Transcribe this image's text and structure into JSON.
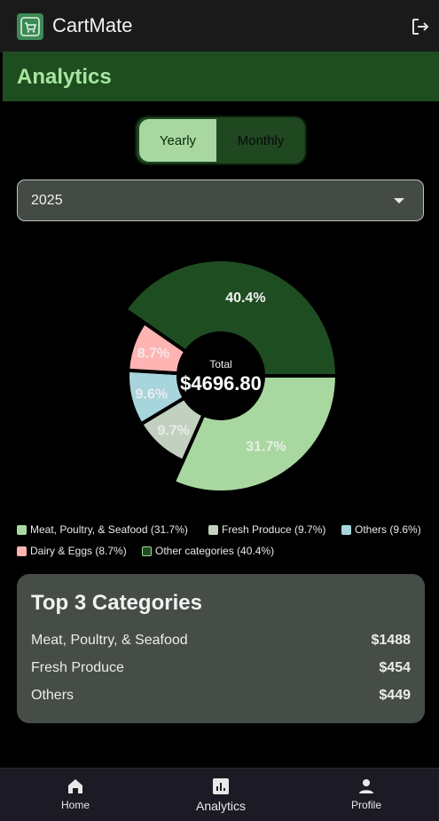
{
  "app": {
    "title": "CartMate"
  },
  "section": {
    "title": "Analytics"
  },
  "period_toggle": {
    "options": [
      "Yearly",
      "Monthly"
    ],
    "selected": "Yearly"
  },
  "year_select": {
    "value": "2025"
  },
  "chart_data": {
    "type": "pie",
    "donut": true,
    "center_label": "Total",
    "center_value": "$4696.80",
    "slices": [
      {
        "label": "Meat, Poultry, & Seafood",
        "value": 31.7,
        "display": "31.7%",
        "color": "#a8d8a0"
      },
      {
        "label": "Fresh Produce",
        "value": 9.7,
        "display": "9.7%",
        "color": "#c2d0c0"
      },
      {
        "label": "Others",
        "value": 9.6,
        "display": "9.6%",
        "color": "#a8d4dc"
      },
      {
        "label": "Dairy & Eggs",
        "value": 8.7,
        "display": "8.7%",
        "color": "#ffb3b3"
      },
      {
        "label": "Other categories",
        "value": 40.4,
        "display": "40.4%",
        "color": "#1f4d22"
      }
    ],
    "legend": {
      "placement": "bottom",
      "rows": [
        [
          "Meat, Poultry, & Seafood (31.7%)",
          "Fresh Produce (9.7%)",
          "Others (9.6%)"
        ],
        [
          "Dairy & Eggs (8.7%)",
          "Other categories (40.4%)"
        ]
      ]
    }
  },
  "top_categories": {
    "title": "Top 3 Categories",
    "items": [
      {
        "name": "Meat, Poultry, & Seafood",
        "amount": "$1488"
      },
      {
        "name": "Fresh Produce",
        "amount": "$454"
      },
      {
        "name": "Others",
        "amount": "$449"
      }
    ]
  },
  "nav": {
    "items": [
      {
        "label": "Home",
        "icon": "home-icon"
      },
      {
        "label": "Analytics",
        "icon": "analytics-icon"
      },
      {
        "label": "Profile",
        "icon": "person-icon"
      }
    ],
    "active": "Analytics"
  },
  "colors": {
    "accent_green": "#1e4d20",
    "light_green": "#a8d8a0",
    "title_green": "#a8e6a0"
  }
}
